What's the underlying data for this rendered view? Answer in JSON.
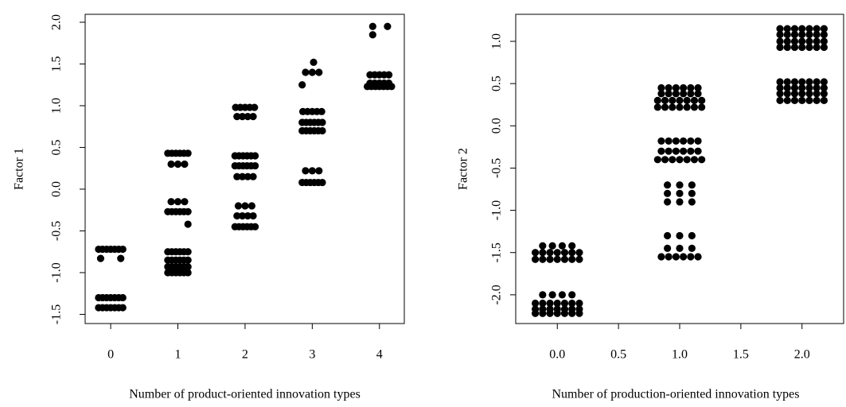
{
  "chart_data": [
    {
      "type": "scatter",
      "x_label": "Number of product-oriented innovation types",
      "y_label": "Factor 1",
      "color": "#000000",
      "xlim": [
        -0.38,
        4.37
      ],
      "ylim": [
        -1.61,
        2.095
      ],
      "xticks": [
        0,
        1,
        2,
        3,
        4
      ],
      "yticks": [
        -1.5,
        {
          "value": -1,
          "label": "-1.0"
        },
        -0.5,
        {
          "value": 0,
          "label": "0.0"
        },
        0.5,
        {
          "value": 1,
          "label": "1.0"
        },
        1.5,
        {
          "value": 2,
          "label": "2.0"
        }
      ],
      "x": [
        -0.18,
        -0.12,
        -0.06,
        0,
        0.06,
        0.12,
        0.18,
        -0.15,
        0.15,
        -0.18,
        -0.12,
        -0.06,
        0,
        0.06,
        0.12,
        0.18,
        -0.18,
        -0.12,
        -0.06,
        0,
        0.06,
        0.12,
        0.18,
        0.85,
        0.91,
        0.97,
        1.03,
        1.09,
        1.15,
        0.9,
        1,
        1.1,
        0.9,
        1,
        1.1,
        0.85,
        0.91,
        0.97,
        1.03,
        1.09,
        1.15,
        1.15,
        0.85,
        0.91,
        0.97,
        1.03,
        1.09,
        1.15,
        0.85,
        0.91,
        0.97,
        1.03,
        1.09,
        1.15,
        0.85,
        0.91,
        0.97,
        1.03,
        1.09,
        1.15,
        0.85,
        0.91,
        0.97,
        1.03,
        1.09,
        1.15,
        1.86,
        1.93,
        2,
        2.07,
        2.14,
        1.88,
        1.96,
        2.04,
        2.12,
        1.85,
        1.91,
        1.97,
        2.03,
        2.09,
        2.15,
        1.85,
        1.91,
        1.97,
        2.03,
        2.09,
        2.15,
        1.88,
        1.96,
        2.04,
        2.12,
        1.9,
        2,
        2.1,
        1.88,
        1.96,
        2.04,
        2.12,
        1.85,
        1.91,
        1.97,
        2.03,
        2.09,
        2.15,
        3.02,
        2.9,
        3,
        3.1,
        2.85,
        2.86,
        2.93,
        3,
        3.07,
        3.14,
        2.85,
        2.91,
        2.97,
        3.03,
        3.09,
        3.15,
        2.85,
        2.91,
        2.97,
        3.03,
        3.09,
        3.15,
        2.9,
        3,
        3.1,
        2.85,
        2.91,
        2.97,
        3.03,
        3.09,
        3.15,
        3.9,
        4.12,
        3.9,
        3.86,
        3.93,
        4,
        4.07,
        4.14,
        3.86,
        3.93,
        4,
        4.07,
        4.14,
        3.82,
        3.88,
        3.94,
        4,
        4.06,
        4.12,
        4.18
      ],
      "values": [
        -0.72,
        -0.72,
        -0.72,
        -0.72,
        -0.72,
        -0.72,
        -0.72,
        -0.83,
        -0.83,
        -1.3,
        -1.3,
        -1.3,
        -1.3,
        -1.3,
        -1.3,
        -1.3,
        -1.42,
        -1.42,
        -1.42,
        -1.42,
        -1.42,
        -1.42,
        -1.42,
        0.43,
        0.43,
        0.43,
        0.43,
        0.43,
        0.43,
        0.3,
        0.3,
        0.3,
        -0.15,
        -0.15,
        -0.15,
        -0.27,
        -0.27,
        -0.27,
        -0.27,
        -0.27,
        -0.27,
        -0.42,
        -0.75,
        -0.75,
        -0.75,
        -0.75,
        -0.75,
        -0.75,
        -0.85,
        -0.85,
        -0.85,
        -0.85,
        -0.85,
        -0.85,
        -0.93,
        -0.93,
        -0.93,
        -0.93,
        -0.93,
        -0.93,
        -1.0,
        -1.0,
        -1.0,
        -1.0,
        -1.0,
        -1.0,
        0.98,
        0.98,
        0.98,
        0.98,
        0.98,
        0.87,
        0.87,
        0.87,
        0.87,
        0.4,
        0.4,
        0.4,
        0.4,
        0.4,
        0.4,
        0.28,
        0.28,
        0.28,
        0.28,
        0.28,
        0.28,
        0.15,
        0.15,
        0.15,
        0.15,
        -0.2,
        -0.2,
        -0.2,
        -0.32,
        -0.32,
        -0.32,
        -0.32,
        -0.45,
        -0.45,
        -0.45,
        -0.45,
        -0.45,
        -0.45,
        1.52,
        1.4,
        1.4,
        1.4,
        1.25,
        0.93,
        0.93,
        0.93,
        0.93,
        0.93,
        0.8,
        0.8,
        0.8,
        0.8,
        0.8,
        0.8,
        0.7,
        0.7,
        0.7,
        0.7,
        0.7,
        0.7,
        0.22,
        0.22,
        0.22,
        0.08,
        0.08,
        0.08,
        0.08,
        0.08,
        0.08,
        1.95,
        1.95,
        1.85,
        1.37,
        1.37,
        1.37,
        1.37,
        1.37,
        1.27,
        1.27,
        1.27,
        1.27,
        1.27,
        1.23,
        1.23,
        1.23,
        1.23,
        1.23,
        1.23,
        1.23
      ]
    },
    {
      "type": "scatter",
      "x_label": "Number of production-oriented innovation types",
      "y_label": "Factor 2",
      "color": "#000000",
      "xlim": [
        -0.34,
        2.34
      ],
      "ylim": [
        -2.34,
        1.32
      ],
      "xticks": [
        {
          "value": 0,
          "label": "0.0"
        },
        0.5,
        {
          "value": 1,
          "label": "1.0"
        },
        1.5,
        {
          "value": 2,
          "label": "2.0"
        }
      ],
      "yticks": [
        {
          "value": -2,
          "label": "-2.0"
        },
        -1.5,
        {
          "value": -1,
          "label": "-1.0"
        },
        -0.5,
        {
          "value": 0,
          "label": "0.0"
        },
        0.5,
        {
          "value": 1,
          "label": "1.0"
        }
      ],
      "x": [
        -0.12,
        -0.04,
        0.04,
        0.12,
        -0.18,
        -0.12,
        -0.06,
        0,
        0.06,
        0.12,
        0.18,
        -0.18,
        -0.12,
        -0.06,
        0,
        0.06,
        0.12,
        0.18,
        -0.12,
        -0.04,
        0.04,
        0.12,
        -0.18,
        -0.12,
        -0.06,
        0,
        0.06,
        0.12,
        0.18,
        -0.18,
        -0.12,
        -0.06,
        0,
        0.06,
        0.12,
        0.18,
        -0.18,
        -0.12,
        -0.06,
        0,
        0.06,
        0.12,
        0.18,
        0.85,
        0.91,
        0.97,
        1.03,
        1.09,
        1.15,
        0.85,
        0.91,
        0.97,
        1.03,
        1.09,
        1.15,
        0.82,
        0.88,
        0.94,
        1,
        1.06,
        1.12,
        1.18,
        0.82,
        0.88,
        0.94,
        1,
        1.06,
        1.12,
        1.18,
        0.85,
        0.91,
        0.97,
        1.03,
        1.09,
        1.15,
        0.85,
        0.91,
        0.97,
        1.03,
        1.09,
        1.15,
        0.82,
        0.88,
        0.94,
        1,
        1.06,
        1.12,
        1.18,
        0.9,
        1,
        1.1,
        0.9,
        1,
        1.1,
        0.9,
        1,
        1.1,
        0.9,
        1,
        1.1,
        0.9,
        1,
        1.1,
        0.85,
        0.91,
        0.97,
        1.03,
        1.09,
        1.15,
        1.82,
        1.88,
        1.94,
        2,
        2.06,
        2.12,
        2.18,
        1.82,
        1.88,
        1.94,
        2,
        2.06,
        2.12,
        2.18,
        1.82,
        1.88,
        1.94,
        2,
        2.06,
        2.12,
        2.18,
        1.82,
        1.88,
        1.94,
        2,
        2.06,
        2.12,
        2.18,
        1.82,
        1.88,
        1.94,
        2,
        2.06,
        2.12,
        2.18,
        1.82,
        1.88,
        1.94,
        2,
        2.06,
        2.12,
        2.18,
        1.82,
        1.88,
        1.94,
        2,
        2.06,
        2.12,
        2.18,
        1.82,
        1.88,
        1.94,
        2,
        2.06,
        2.12,
        2.18
      ],
      "values": [
        -1.42,
        -1.42,
        -1.42,
        -1.42,
        -1.5,
        -1.5,
        -1.5,
        -1.5,
        -1.5,
        -1.5,
        -1.5,
        -1.58,
        -1.58,
        -1.58,
        -1.58,
        -1.58,
        -1.58,
        -1.58,
        -2.0,
        -2.0,
        -2.0,
        -2.0,
        -2.1,
        -2.1,
        -2.1,
        -2.1,
        -2.1,
        -2.1,
        -2.1,
        -2.17,
        -2.17,
        -2.17,
        -2.17,
        -2.17,
        -2.17,
        -2.17,
        -2.22,
        -2.22,
        -2.22,
        -2.22,
        -2.22,
        -2.22,
        -2.22,
        0.45,
        0.45,
        0.45,
        0.45,
        0.45,
        0.45,
        0.38,
        0.38,
        0.38,
        0.38,
        0.38,
        0.38,
        0.3,
        0.3,
        0.3,
        0.3,
        0.3,
        0.3,
        0.3,
        0.22,
        0.22,
        0.22,
        0.22,
        0.22,
        0.22,
        0.22,
        -0.18,
        -0.18,
        -0.18,
        -0.18,
        -0.18,
        -0.18,
        -0.3,
        -0.3,
        -0.3,
        -0.3,
        -0.3,
        -0.3,
        -0.4,
        -0.4,
        -0.4,
        -0.4,
        -0.4,
        -0.4,
        -0.4,
        -0.7,
        -0.7,
        -0.7,
        -0.8,
        -0.8,
        -0.8,
        -0.9,
        -0.9,
        -0.9,
        -1.3,
        -1.3,
        -1.3,
        -1.45,
        -1.45,
        -1.45,
        -1.55,
        -1.55,
        -1.55,
        -1.55,
        -1.55,
        -1.55,
        1.15,
        1.15,
        1.15,
        1.15,
        1.15,
        1.15,
        1.15,
        1.08,
        1.08,
        1.08,
        1.08,
        1.08,
        1.08,
        1.08,
        1.0,
        1.0,
        1.0,
        1.0,
        1.0,
        1.0,
        1.0,
        0.93,
        0.93,
        0.93,
        0.93,
        0.93,
        0.93,
        0.93,
        0.52,
        0.52,
        0.52,
        0.52,
        0.52,
        0.52,
        0.52,
        0.45,
        0.45,
        0.45,
        0.45,
        0.45,
        0.45,
        0.45,
        0.38,
        0.38,
        0.38,
        0.38,
        0.38,
        0.38,
        0.38,
        0.3,
        0.3,
        0.3,
        0.3,
        0.3,
        0.3,
        0.3
      ]
    }
  ]
}
